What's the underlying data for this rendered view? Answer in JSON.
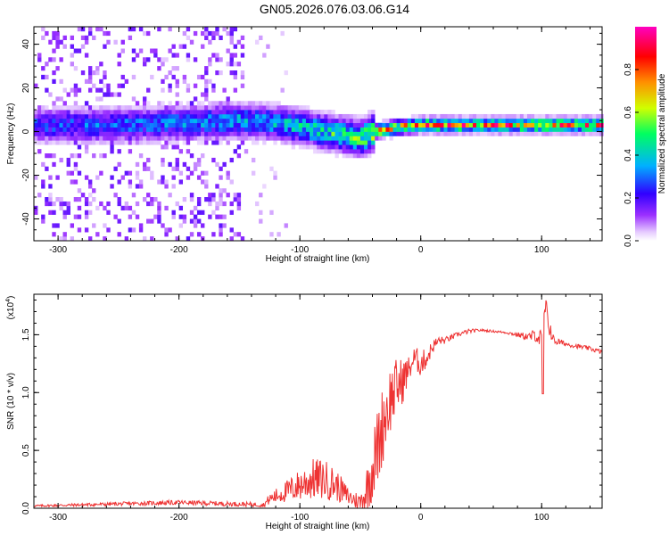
{
  "title": "GN05.2026.076.03.06.G14",
  "chart_data": [
    {
      "type": "heatmap",
      "xlabel": "Height of straight line (km)",
      "ylabel": "Frequency (Hz)",
      "xlim": [
        -320,
        150
      ],
      "ylim": [
        -50,
        48
      ],
      "x_ticks": [
        -300,
        -200,
        -100,
        0,
        100
      ],
      "y_ticks": [
        -40,
        -20,
        0,
        20,
        40
      ],
      "colorbar": {
        "label": "Normalized spectral amplitude",
        "range": [
          0,
          1
        ],
        "ticks": [
          0.0,
          0.2,
          0.4,
          0.6,
          0.8
        ],
        "colors": [
          "#ffffff",
          "#9b30ff",
          "#3000ff",
          "#00b0ff",
          "#00ff60",
          "#d0ff00",
          "#ff9000",
          "#ff0000",
          "#ff00c0"
        ]
      },
      "ridge": {
        "x": [
          -320,
          -250,
          -200,
          -150,
          -120,
          -100,
          -80,
          -60,
          -50,
          -40,
          -20,
          0,
          50,
          100,
          150
        ],
        "frequency": [
          2,
          2,
          3,
          4,
          3,
          1,
          -1,
          -3,
          -4,
          -1,
          1,
          2,
          2,
          2,
          2
        ],
        "peak_amplitude": [
          0.3,
          0.32,
          0.35,
          0.4,
          0.4,
          0.45,
          0.5,
          0.55,
          0.6,
          0.7,
          0.8,
          0.85,
          0.85,
          0.85,
          0.85
        ]
      },
      "noise_region_x": [
        -320,
        -148
      ]
    },
    {
      "type": "line",
      "xlabel": "Height of straight line (km)",
      "ylabel": "SNR (10 * v/v)",
      "multiplier": "(x10",
      "multiplier_exp": "4",
      "xlim": [
        -320,
        150
      ],
      "ylim": [
        0,
        1.85
      ],
      "x_ticks": [
        -300,
        -200,
        -100,
        0,
        100
      ],
      "y_ticks": [
        0.0,
        0.5,
        1.0,
        1.5
      ],
      "series": [
        {
          "color": "#ee3333",
          "x": [
            -320,
            -200,
            -130,
            -125,
            -110,
            -100,
            -90,
            -80,
            -70,
            -60,
            -50,
            -45,
            -40,
            -35,
            -30,
            -25,
            -20,
            -15,
            -10,
            -5,
            0,
            5,
            10,
            15,
            20,
            30,
            40,
            50,
            60,
            70,
            80,
            90,
            95,
            100,
            103,
            110,
            120,
            130,
            140,
            150
          ],
          "y": [
            0.02,
            0.05,
            0.03,
            0.08,
            0.15,
            0.2,
            0.25,
            0.25,
            0.2,
            0.1,
            0.05,
            0.15,
            0.35,
            0.55,
            0.8,
            0.95,
            1.05,
            1.1,
            1.2,
            1.3,
            1.25,
            1.3,
            1.4,
            1.45,
            1.45,
            1.5,
            1.53,
            1.54,
            1.53,
            1.52,
            1.5,
            1.48,
            1.5,
            1.45,
            1.7,
            1.45,
            1.42,
            1.4,
            1.38,
            1.35
          ],
          "noise": [
            0.01,
            0.02,
            0.02,
            0.05,
            0.1,
            0.14,
            0.18,
            0.18,
            0.14,
            0.08,
            0.08,
            0.2,
            0.3,
            0.35,
            0.35,
            0.3,
            0.25,
            0.2,
            0.12,
            0.1,
            0.12,
            0.08,
            0.06,
            0.04,
            0.03,
            0.02,
            0.02,
            0.01,
            0.01,
            0.01,
            0.02,
            0.04,
            0.06,
            0.1,
            0.15,
            0.04,
            0.02,
            0.02,
            0.02,
            0.02
          ]
        }
      ],
      "minimum_marker": {
        "x": 101,
        "y": 0.99
      }
    }
  ]
}
